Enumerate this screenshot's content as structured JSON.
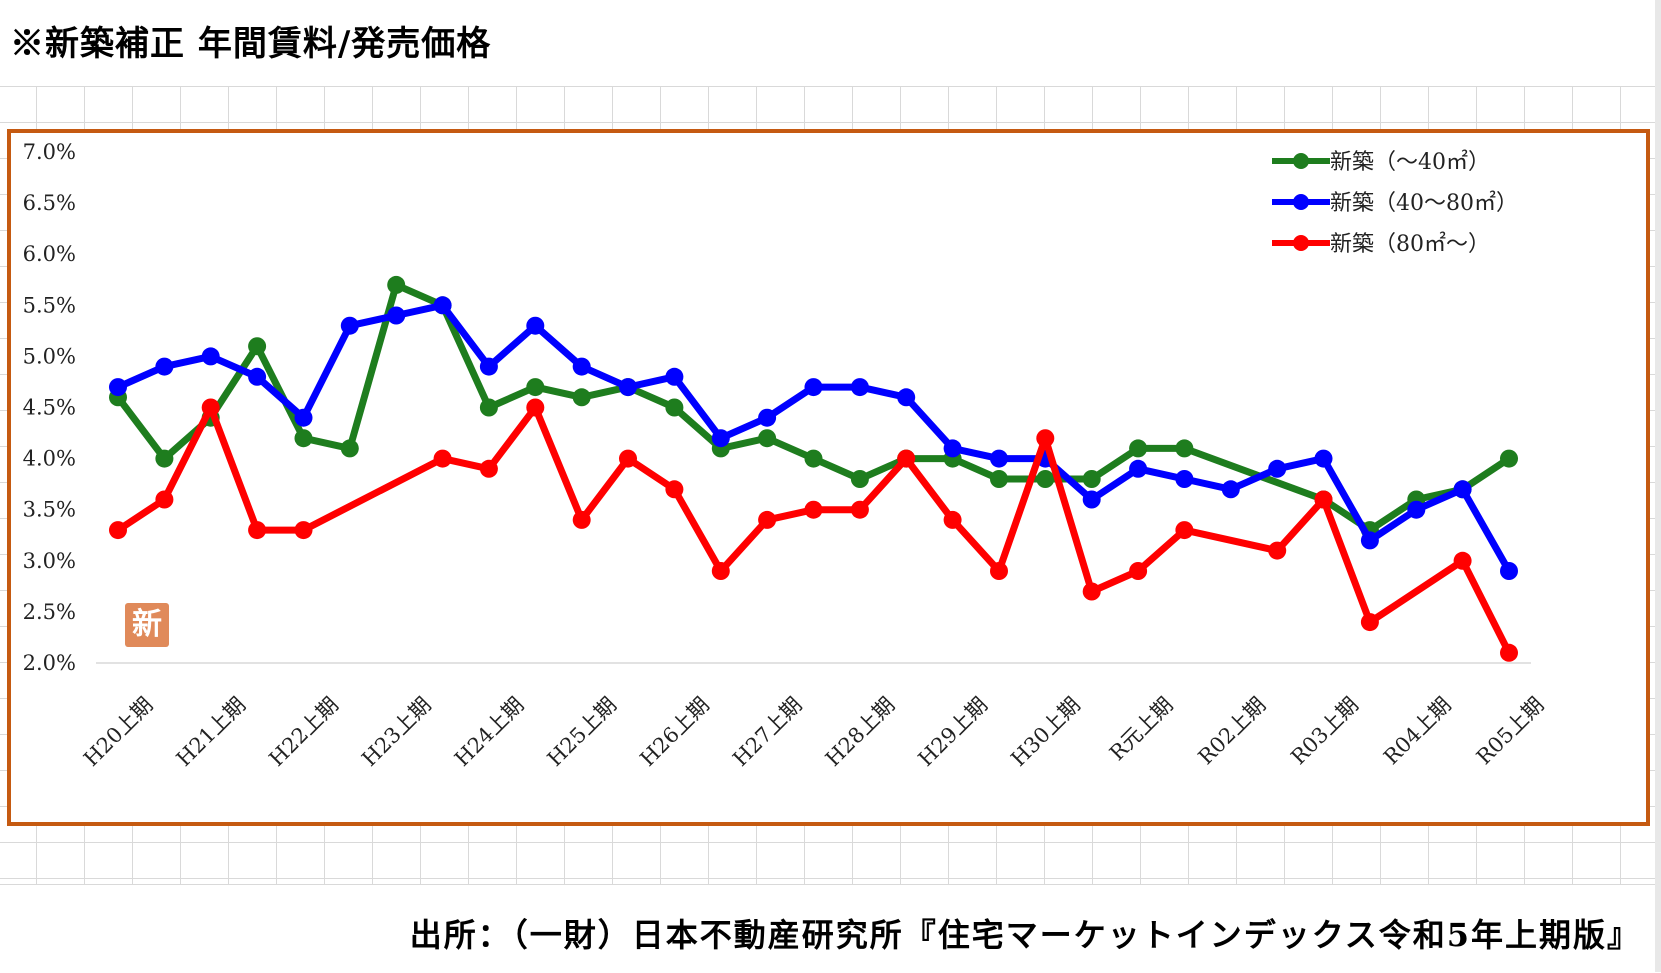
{
  "title": "※新築補正 年間賃料/発売価格",
  "source": "出所：（一財）日本不動産研究所『住宅マーケットインデックス令和5年上期版』",
  "stamp_text": "新",
  "chart_data": {
    "type": "line",
    "title": "",
    "xlabel": "",
    "ylabel": "",
    "ylim": [
      2.0,
      7.0
    ],
    "yticks": [
      "7.0%",
      "6.5%",
      "6.0%",
      "5.5%",
      "5.0%",
      "4.5%",
      "4.0%",
      "3.5%",
      "3.0%",
      "2.5%",
      "2.0%"
    ],
    "x_tick_labels": [
      "H20上期",
      "H21上期",
      "H22上期",
      "H23上期",
      "H24上期",
      "H25上期",
      "H26上期",
      "H27上期",
      "H28上期",
      "H29上期",
      "H30上期",
      "R元上期",
      "R02上期",
      "R03上期",
      "R04上期",
      "R05上期"
    ],
    "legend_position": "top-right",
    "grid": "horizontal baseline only",
    "series": [
      {
        "name": "新築（～40㎡）",
        "color": "#1e7d1e",
        "points": [
          {
            "x": 0,
            "y": 4.6
          },
          {
            "x": 1,
            "y": 4.0
          },
          {
            "x": 2,
            "y": 4.4
          },
          {
            "x": 3,
            "y": 5.1
          },
          {
            "x": 4,
            "y": 4.2
          },
          {
            "x": 5,
            "y": 4.1
          },
          {
            "x": 6,
            "y": 5.7
          },
          {
            "x": 7,
            "y": 5.5
          },
          {
            "x": 8,
            "y": 4.5
          },
          {
            "x": 9,
            "y": 4.7
          },
          {
            "x": 10,
            "y": 4.6
          },
          {
            "x": 11,
            "y": 4.7
          },
          {
            "x": 12,
            "y": 4.5
          },
          {
            "x": 13,
            "y": 4.1
          },
          {
            "x": 14,
            "y": 4.2
          },
          {
            "x": 15,
            "y": 4.0
          },
          {
            "x": 16,
            "y": 3.8
          },
          {
            "x": 17,
            "y": 4.0
          },
          {
            "x": 18,
            "y": 4.0
          },
          {
            "x": 19,
            "y": 3.8
          },
          {
            "x": 20,
            "y": 3.8
          },
          {
            "x": 21,
            "y": 3.8
          },
          {
            "x": 22,
            "y": 4.1
          },
          {
            "x": 23,
            "y": 4.1
          },
          {
            "x": 26,
            "y": 3.6
          },
          {
            "x": 27,
            "y": 3.3
          },
          {
            "x": 28,
            "y": 3.6
          },
          {
            "x": 29,
            "y": 3.7
          },
          {
            "x": 30,
            "y": 4.0
          }
        ]
      },
      {
        "name": "新築（40～80㎡）",
        "color": "#0000ff",
        "points": [
          {
            "x": 0,
            "y": 4.7
          },
          {
            "x": 1,
            "y": 4.9
          },
          {
            "x": 2,
            "y": 5.0
          },
          {
            "x": 3,
            "y": 4.8
          },
          {
            "x": 4,
            "y": 4.4
          },
          {
            "x": 5,
            "y": 5.3
          },
          {
            "x": 6,
            "y": 5.4
          },
          {
            "x": 7,
            "y": 5.5
          },
          {
            "x": 8,
            "y": 4.9
          },
          {
            "x": 9,
            "y": 5.3
          },
          {
            "x": 10,
            "y": 4.9
          },
          {
            "x": 11,
            "y": 4.7
          },
          {
            "x": 12,
            "y": 4.8
          },
          {
            "x": 13,
            "y": 4.2
          },
          {
            "x": 14,
            "y": 4.4
          },
          {
            "x": 15,
            "y": 4.7
          },
          {
            "x": 16,
            "y": 4.7
          },
          {
            "x": 17,
            "y": 4.6
          },
          {
            "x": 18,
            "y": 4.1
          },
          {
            "x": 19,
            "y": 4.0
          },
          {
            "x": 20,
            "y": 4.0
          },
          {
            "x": 21,
            "y": 3.6
          },
          {
            "x": 22,
            "y": 3.9
          },
          {
            "x": 23,
            "y": 3.8
          },
          {
            "x": 24,
            "y": 3.7
          },
          {
            "x": 25,
            "y": 3.9
          },
          {
            "x": 26,
            "y": 4.0
          },
          {
            "x": 27,
            "y": 3.2
          },
          {
            "x": 28,
            "y": 3.5
          },
          {
            "x": 29,
            "y": 3.7
          },
          {
            "x": 30,
            "y": 2.9
          }
        ]
      },
      {
        "name": "新築（80㎡～）",
        "color": "#ff0000",
        "points": [
          {
            "x": 0,
            "y": 3.3
          },
          {
            "x": 1,
            "y": 3.6
          },
          {
            "x": 2,
            "y": 4.5
          },
          {
            "x": 3,
            "y": 3.3
          },
          {
            "x": 4,
            "y": 3.3
          },
          {
            "x": 7,
            "y": 4.0
          },
          {
            "x": 8,
            "y": 3.9
          },
          {
            "x": 9,
            "y": 4.5
          },
          {
            "x": 10,
            "y": 3.4
          },
          {
            "x": 11,
            "y": 4.0
          },
          {
            "x": 12,
            "y": 3.7
          },
          {
            "x": 13,
            "y": 2.9
          },
          {
            "x": 14,
            "y": 3.4
          },
          {
            "x": 15,
            "y": 3.5
          },
          {
            "x": 16,
            "y": 3.5
          },
          {
            "x": 17,
            "y": 4.0
          },
          {
            "x": 18,
            "y": 3.4
          },
          {
            "x": 19,
            "y": 2.9
          },
          {
            "x": 20,
            "y": 4.2
          },
          {
            "x": 21,
            "y": 2.7
          },
          {
            "x": 22,
            "y": 2.9
          },
          {
            "x": 23,
            "y": 3.3
          },
          {
            "x": 25,
            "y": 3.1
          },
          {
            "x": 26,
            "y": 3.6
          },
          {
            "x": 27,
            "y": 2.4
          },
          {
            "x": 29,
            "y": 3.0
          },
          {
            "x": 30,
            "y": 2.1
          }
        ]
      }
    ]
  }
}
